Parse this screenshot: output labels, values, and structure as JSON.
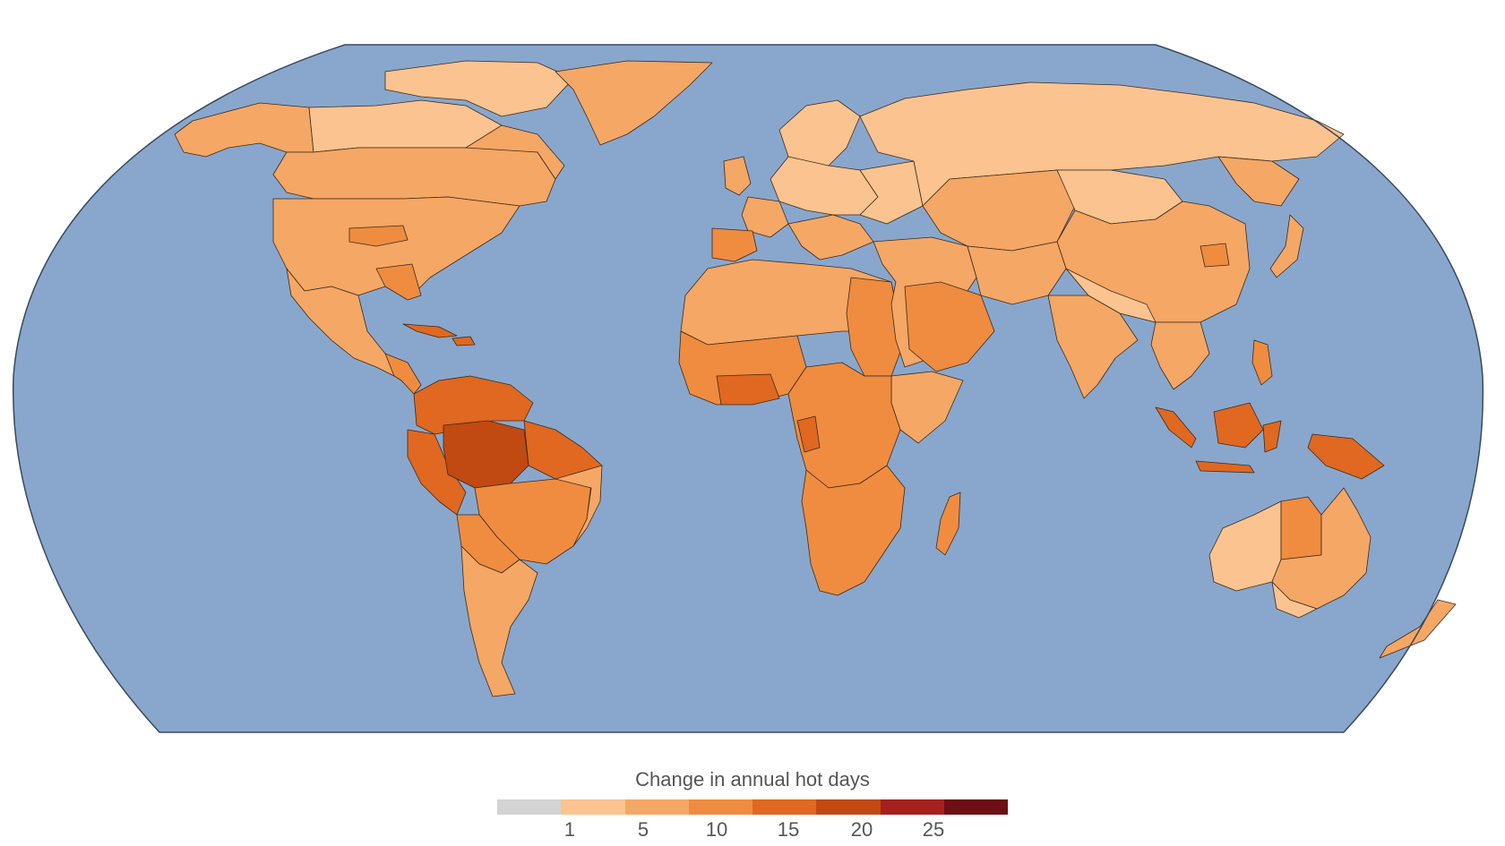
{
  "colors": {
    "ocean": "#89a7cd",
    "frame": "#3a4a5c",
    "border": "#3d2a1a",
    "bin0": "#d4d4d4",
    "bin1": "#fbc38f",
    "bin2": "#f5a765",
    "bin3": "#ef8c40",
    "bin4": "#e06820",
    "bin5": "#c04a12",
    "bin6": "#a6211e",
    "bin7": "#6d0f14"
  },
  "legend": {
    "title": "Change in annual hot days",
    "segment_colors": [
      "#d4d4d4",
      "#fbc38f",
      "#f5a765",
      "#ef8c40",
      "#e06820",
      "#c04a12",
      "#a6211e",
      "#6d0f14"
    ],
    "ticks": [
      "1",
      "5",
      "10",
      "15",
      "20",
      "25"
    ]
  }
}
